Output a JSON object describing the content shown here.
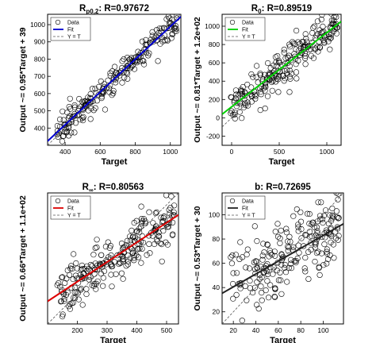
{
  "chart_data": [
    {
      "type": "scatter",
      "title": {
        "main": "R",
        "sub": "p0,2",
        "rest": ": R=0.97672"
      },
      "xlabel": "Target",
      "ylabel": "Output ~= 0.95*Target + 39",
      "xlim": [
        300,
        1060
      ],
      "ylim": [
        300,
        1060
      ],
      "xticks": [
        400,
        600,
        800,
        1000
      ],
      "yticks": [
        400,
        500,
        600,
        700,
        800,
        900,
        1000
      ],
      "fit": {
        "slope": 0.95,
        "intercept": 39,
        "color": "#0000d0"
      },
      "legend": {
        "position": "top-left",
        "entries": [
          "Data",
          "Fit",
          "Y = T"
        ]
      },
      "n_points": 220,
      "noise": 38
    },
    {
      "type": "scatter",
      "title": {
        "main": "R",
        "sub": "0",
        "rest": ": R=0.89519"
      },
      "xlabel": "Target",
      "ylabel": "Output ~= 0.81*Target + 1.2e+02",
      "xlim": [
        -100,
        1150
      ],
      "ylim": [
        -300,
        1130
      ],
      "xticks": [
        0,
        500,
        1000
      ],
      "yticks": [
        -200,
        0,
        200,
        400,
        600,
        800,
        1000
      ],
      "fit": {
        "slope": 0.81,
        "intercept": 120,
        "color": "#00d000"
      },
      "legend": {
        "position": "top-left",
        "entries": [
          "Data",
          "Fit",
          "Y = T"
        ]
      },
      "n_points": 230,
      "noise": 110
    },
    {
      "type": "scatter",
      "title": {
        "main": "R",
        "sub": "∞",
        "rest": ": R=0.80563"
      },
      "xlabel": "Target",
      "ylabel": "Output ~= 0.66*Target + 1.1e+02",
      "xlim": [
        100,
        540
      ],
      "ylim": [
        100,
        540
      ],
      "xticks": [
        200,
        300,
        400,
        500
      ],
      "yticks": [],
      "fit": {
        "slope": 0.66,
        "intercept": 110,
        "color": "#dd0000"
      },
      "legend": {
        "position": "top-left",
        "entries": [
          "Data",
          "Fit",
          "Y = T"
        ]
      },
      "n_points": 240,
      "noise": 42
    },
    {
      "type": "scatter",
      "title": {
        "main": "b",
        "sub": "",
        "rest": ": R=0.72695"
      },
      "xlabel": "Target",
      "ylabel": "Output ~= 0.53*Target + 30",
      "xlim": [
        10,
        118
      ],
      "ylim": [
        10,
        118
      ],
      "xticks": [
        20,
        40,
        60,
        80,
        100
      ],
      "yticks": [
        20,
        40,
        60,
        80,
        100
      ],
      "fit": {
        "slope": 0.53,
        "intercept": 30,
        "color": "#222222"
      },
      "legend": {
        "position": "top-left",
        "entries": [
          "Data",
          "Fit",
          "Y = T"
        ]
      },
      "n_points": 220,
      "noise": 15
    }
  ]
}
